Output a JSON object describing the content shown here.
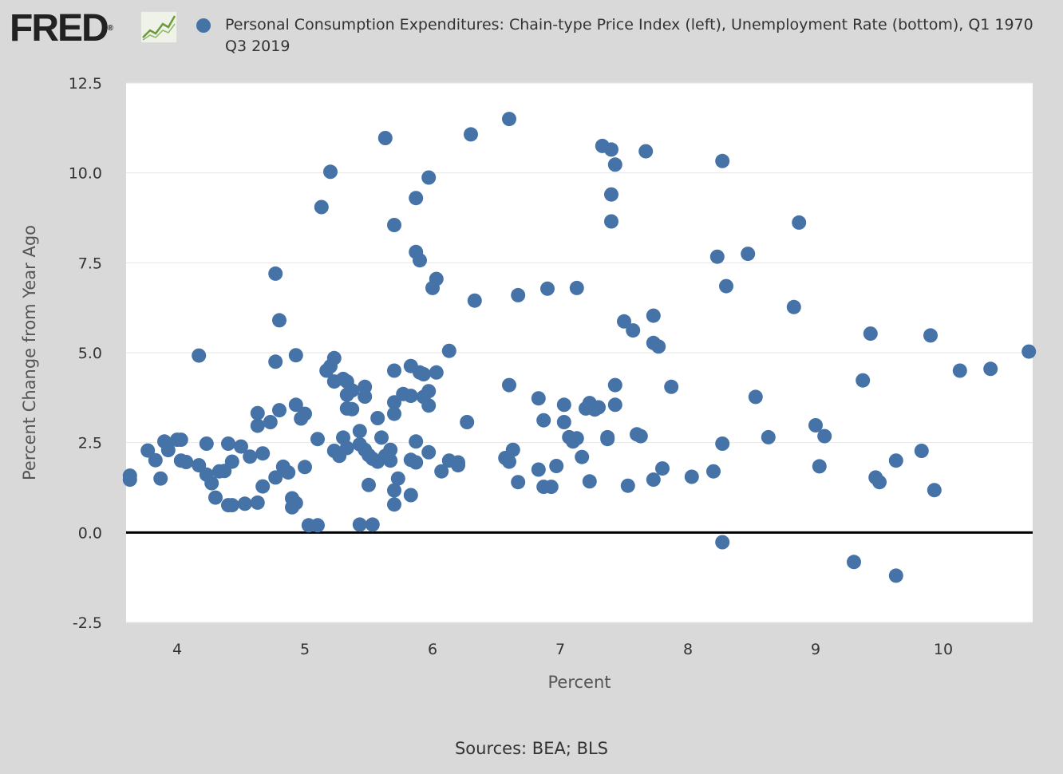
{
  "header": {
    "logo_text": "FRED",
    "logo_reg": "®",
    "legend_label": "Personal Consumption Expenditures: Chain-type Price Index (left), Unemployment Rate (bottom), Q1 1970 Q3 2019"
  },
  "colors": {
    "background": "#d9d9d9",
    "plot_background": "#ffffff",
    "marker": "#4572a7",
    "zero_line": "#000000",
    "grid": "#e6e6e6",
    "logo_graph_line": "#6b9a3a"
  },
  "footer": {
    "sources": "Sources: BEA; BLS"
  },
  "chart_data": {
    "type": "scatter",
    "xlabel": "Percent",
    "ylabel": "Percent Change from Year Ago",
    "xlim": [
      3.6,
      10.7
    ],
    "ylim": [
      -2.5,
      12.5
    ],
    "x_ticks": [
      "4",
      "5",
      "6",
      "7",
      "8",
      "9",
      "10"
    ],
    "y_ticks": [
      "12.5",
      "10.0",
      "7.5",
      "5.0",
      "2.5",
      "0.0",
      "-2.5"
    ],
    "grid": true,
    "legend_position": "top",
    "series": [
      {
        "name": "Personal Consumption Expenditures: Chain-type Price Index (left), Unemployment Rate (bottom), Q1 1970 Q3 2019",
        "points": [
          [
            3.63,
            1.58
          ],
          [
            3.63,
            1.47
          ],
          [
            3.77,
            2.28
          ],
          [
            3.83,
            2.01
          ],
          [
            3.87,
            1.5
          ],
          [
            3.9,
            2.53
          ],
          [
            3.93,
            2.29
          ],
          [
            4.0,
            2.58
          ],
          [
            4.03,
            2.58
          ],
          [
            4.03,
            2.0
          ],
          [
            4.07,
            1.96
          ],
          [
            4.17,
            1.87
          ],
          [
            4.17,
            4.92
          ],
          [
            4.23,
            2.47
          ],
          [
            4.23,
            1.61
          ],
          [
            4.27,
            1.37
          ],
          [
            4.3,
            0.97
          ],
          [
            4.33,
            1.7
          ],
          [
            4.37,
            1.71
          ],
          [
            4.4,
            2.47
          ],
          [
            4.4,
            0.76
          ],
          [
            4.43,
            1.97
          ],
          [
            4.43,
            0.76
          ],
          [
            4.5,
            2.39
          ],
          [
            4.53,
            0.8
          ],
          [
            4.57,
            2.11
          ],
          [
            4.63,
            3.32
          ],
          [
            4.63,
            2.97
          ],
          [
            4.63,
            0.83
          ],
          [
            4.67,
            2.2
          ],
          [
            4.67,
            1.28
          ],
          [
            4.73,
            3.07
          ],
          [
            4.77,
            7.2
          ],
          [
            4.77,
            4.75
          ],
          [
            4.77,
            1.53
          ],
          [
            4.8,
            5.9
          ],
          [
            4.8,
            3.4
          ],
          [
            4.83,
            1.83
          ],
          [
            4.87,
            1.67
          ],
          [
            4.9,
            0.95
          ],
          [
            4.9,
            0.7
          ],
          [
            4.93,
            4.93
          ],
          [
            4.93,
            3.55
          ],
          [
            4.93,
            0.82
          ],
          [
            4.97,
            3.17
          ],
          [
            5.0,
            3.3
          ],
          [
            5.0,
            1.82
          ],
          [
            5.03,
            0.2
          ],
          [
            5.1,
            0.2
          ],
          [
            5.1,
            2.6
          ],
          [
            5.13,
            9.05
          ],
          [
            5.17,
            4.5
          ],
          [
            5.2,
            10.03
          ],
          [
            5.2,
            4.62
          ],
          [
            5.23,
            4.85
          ],
          [
            5.23,
            4.2
          ],
          [
            5.23,
            2.27
          ],
          [
            5.27,
            2.13
          ],
          [
            5.3,
            2.64
          ],
          [
            5.3,
            4.27
          ],
          [
            5.33,
            4.2
          ],
          [
            5.33,
            3.83
          ],
          [
            5.33,
            3.45
          ],
          [
            5.33,
            2.35
          ],
          [
            5.37,
            3.95
          ],
          [
            5.37,
            3.43
          ],
          [
            5.43,
            2.82
          ],
          [
            5.43,
            2.45
          ],
          [
            5.43,
            0.22
          ],
          [
            5.47,
            4.05
          ],
          [
            5.47,
            3.78
          ],
          [
            5.47,
            2.3
          ],
          [
            5.5,
            2.15
          ],
          [
            5.5,
            1.32
          ],
          [
            5.53,
            2.05
          ],
          [
            5.53,
            0.22
          ],
          [
            5.57,
            3.18
          ],
          [
            5.57,
            1.97
          ],
          [
            5.6,
            2.64
          ],
          [
            5.63,
            10.97
          ],
          [
            5.63,
            2.13
          ],
          [
            5.67,
            2.3
          ],
          [
            5.67,
            2.0
          ],
          [
            5.7,
            8.55
          ],
          [
            5.7,
            4.5
          ],
          [
            5.7,
            3.62
          ],
          [
            5.7,
            3.3
          ],
          [
            5.7,
            1.17
          ],
          [
            5.7,
            0.78
          ],
          [
            5.73,
            1.5
          ],
          [
            5.77,
            3.85
          ],
          [
            5.83,
            4.63
          ],
          [
            5.83,
            3.8
          ],
          [
            5.83,
            2.02
          ],
          [
            5.83,
            1.04
          ],
          [
            5.87,
            9.3
          ],
          [
            5.87,
            7.8
          ],
          [
            5.87,
            2.53
          ],
          [
            5.87,
            1.95
          ],
          [
            5.9,
            7.57
          ],
          [
            5.9,
            4.45
          ],
          [
            5.93,
            4.4
          ],
          [
            5.93,
            3.77
          ],
          [
            5.97,
            9.87
          ],
          [
            5.97,
            3.93
          ],
          [
            5.97,
            3.53
          ],
          [
            5.97,
            2.23
          ],
          [
            6.0,
            6.8
          ],
          [
            6.03,
            7.05
          ],
          [
            6.03,
            4.45
          ],
          [
            6.07,
            1.7
          ],
          [
            6.13,
            5.05
          ],
          [
            6.13,
            2.0
          ],
          [
            6.2,
            1.95
          ],
          [
            6.2,
            1.87
          ],
          [
            6.27,
            3.07
          ],
          [
            6.3,
            11.07
          ],
          [
            6.33,
            6.45
          ],
          [
            6.57,
            2.07
          ],
          [
            6.6,
            11.5
          ],
          [
            6.6,
            4.1
          ],
          [
            6.6,
            1.97
          ],
          [
            6.63,
            2.3
          ],
          [
            6.67,
            6.6
          ],
          [
            6.67,
            1.4
          ],
          [
            6.83,
            3.73
          ],
          [
            6.83,
            1.75
          ],
          [
            6.87,
            3.12
          ],
          [
            6.87,
            1.27
          ],
          [
            6.9,
            6.78
          ],
          [
            6.93,
            1.27
          ],
          [
            6.97,
            1.85
          ],
          [
            7.03,
            3.55
          ],
          [
            7.03,
            3.07
          ],
          [
            7.07,
            2.65
          ],
          [
            7.1,
            2.53
          ],
          [
            7.13,
            6.8
          ],
          [
            7.13,
            2.62
          ],
          [
            7.17,
            2.1
          ],
          [
            7.2,
            3.45
          ],
          [
            7.23,
            3.6
          ],
          [
            7.23,
            1.42
          ],
          [
            7.27,
            3.42
          ],
          [
            7.3,
            3.48
          ],
          [
            7.33,
            10.75
          ],
          [
            7.37,
            2.65
          ],
          [
            7.37,
            2.6
          ],
          [
            7.4,
            10.65
          ],
          [
            7.4,
            9.4
          ],
          [
            7.4,
            8.65
          ],
          [
            7.43,
            10.23
          ],
          [
            7.43,
            4.1
          ],
          [
            7.43,
            3.55
          ],
          [
            7.5,
            5.87
          ],
          [
            7.53,
            1.3
          ],
          [
            7.57,
            5.62
          ],
          [
            7.6,
            2.73
          ],
          [
            7.63,
            2.68
          ],
          [
            7.67,
            10.6
          ],
          [
            7.73,
            6.03
          ],
          [
            7.73,
            5.27
          ],
          [
            7.73,
            1.47
          ],
          [
            7.77,
            5.17
          ],
          [
            7.8,
            1.78
          ],
          [
            7.87,
            4.05
          ],
          [
            8.03,
            1.55
          ],
          [
            8.2,
            1.7
          ],
          [
            8.23,
            7.67
          ],
          [
            8.27,
            10.33
          ],
          [
            8.27,
            2.47
          ],
          [
            8.27,
            -0.27
          ],
          [
            8.3,
            6.85
          ],
          [
            8.47,
            7.75
          ],
          [
            8.53,
            3.77
          ],
          [
            8.63,
            2.65
          ],
          [
            8.83,
            6.27
          ],
          [
            8.87,
            8.62
          ],
          [
            9.0,
            2.98
          ],
          [
            9.03,
            1.84
          ],
          [
            9.07,
            2.68
          ],
          [
            9.3,
            -0.82
          ],
          [
            9.37,
            4.23
          ],
          [
            9.43,
            5.53
          ],
          [
            9.47,
            1.53
          ],
          [
            9.5,
            1.4
          ],
          [
            9.63,
            2.0
          ],
          [
            9.63,
            -1.2
          ],
          [
            9.83,
            2.27
          ],
          [
            9.9,
            5.48
          ],
          [
            9.93,
            1.18
          ],
          [
            10.13,
            4.5
          ],
          [
            10.37,
            4.55
          ],
          [
            10.67,
            5.03
          ]
        ]
      }
    ]
  }
}
